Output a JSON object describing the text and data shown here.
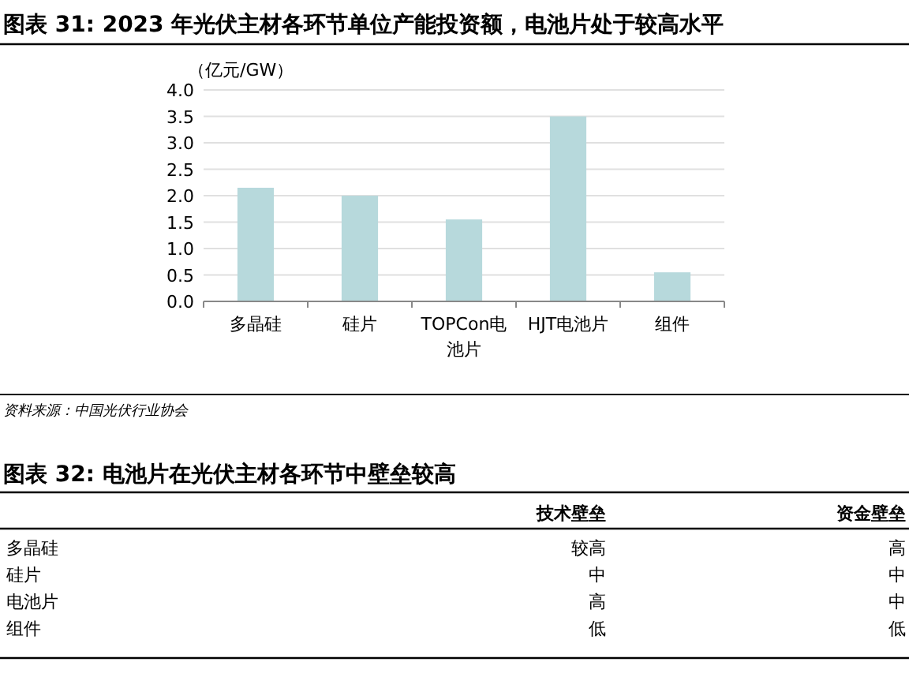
{
  "chart_data": [
    {
      "type": "bar",
      "title": "图表 31: 2023 年光伏主材各环节单位产能投资额，电池片处于较高水平",
      "ylabel": "（亿元/GW）",
      "categories": [
        "多晶硅",
        "硅片",
        "TOPCon电池片",
        "HJT电池片",
        "组件"
      ],
      "values": [
        2.15,
        2.0,
        1.55,
        3.5,
        0.55
      ],
      "color": "#b7d9dc",
      "ylim": [
        0,
        4.0
      ],
      "yticks": [
        {
          "value": 0,
          "label": "0.0"
        },
        {
          "value": 0.5,
          "label": "0.5"
        },
        {
          "value": 1,
          "label": "1.0"
        },
        {
          "value": 1.5,
          "label": "1.5"
        },
        {
          "value": 2,
          "label": "2.0"
        },
        {
          "value": 2.5,
          "label": "2.5"
        },
        {
          "value": 3,
          "label": "3.0"
        },
        {
          "value": 3.5,
          "label": "3.5"
        },
        {
          "value": 4,
          "label": "4.0"
        }
      ],
      "grid": "y",
      "annotations": [
        "资料来源：中国光伏行业协会"
      ]
    },
    {
      "type": "other",
      "title": "图表 32: 电池片在光伏主材各环节中壁垒较高",
      "categories": [
        "技术壁垒",
        "资金壁垒"
      ],
      "y_categories": [
        "多晶硅",
        "硅片",
        "电池片",
        "组件"
      ],
      "cell_labels": [
        [
          "较高",
          "高"
        ],
        [
          "中",
          "中"
        ],
        [
          "高",
          "中"
        ],
        [
          "低",
          "低"
        ]
      ]
    }
  ]
}
